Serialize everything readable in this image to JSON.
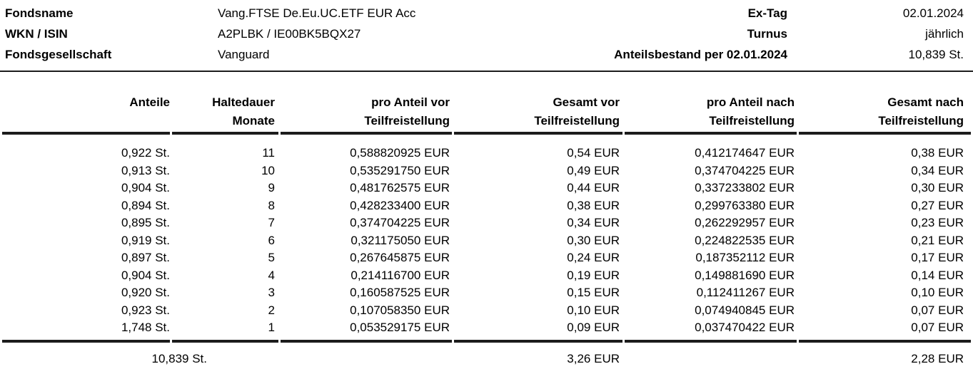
{
  "info": {
    "left": [
      {
        "label": "Fondsname",
        "value": "Vang.FTSE De.Eu.UC.ETF EUR Acc"
      },
      {
        "label": "WKN / ISIN",
        "value": "A2PLBK / IE00BK5BQX27"
      },
      {
        "label": "Fondsgesellschaft",
        "value": "Vanguard"
      }
    ],
    "right": [
      {
        "label": "Ex-Tag",
        "value": "02.01.2024"
      },
      {
        "label": "Turnus",
        "value": "jährlich"
      },
      {
        "label": "Anteilsbestand per 02.01.2024",
        "value": "10,839 St."
      }
    ]
  },
  "table": {
    "columns": [
      {
        "l1": "Anteile",
        "l2": ""
      },
      {
        "l1": "Haltedauer",
        "l2": "Monate"
      },
      {
        "l1": "pro Anteil vor",
        "l2": "Teilfreistellung"
      },
      {
        "l1": "Gesamt vor",
        "l2": "Teilfreistellung"
      },
      {
        "l1": "pro Anteil nach",
        "l2": "Teilfreistellung"
      },
      {
        "l1": "Gesamt nach",
        "l2": "Teilfreistellung"
      }
    ],
    "rows": [
      [
        "0,922 St.",
        "11",
        "0,588820925 EUR",
        "0,54 EUR",
        "0,412174647 EUR",
        "0,38 EUR"
      ],
      [
        "0,913 St.",
        "10",
        "0,535291750 EUR",
        "0,49 EUR",
        "0,374704225 EUR",
        "0,34 EUR"
      ],
      [
        "0,904 St.",
        "9",
        "0,481762575 EUR",
        "0,44 EUR",
        "0,337233802 EUR",
        "0,30 EUR"
      ],
      [
        "0,894 St.",
        "8",
        "0,428233400 EUR",
        "0,38 EUR",
        "0,299763380 EUR",
        "0,27 EUR"
      ],
      [
        "0,895 St.",
        "7",
        "0,374704225 EUR",
        "0,34 EUR",
        "0,262292957 EUR",
        "0,23 EUR"
      ],
      [
        "0,919 St.",
        "6",
        "0,321175050 EUR",
        "0,30 EUR",
        "0,224822535 EUR",
        "0,21 EUR"
      ],
      [
        "0,897 St.",
        "5",
        "0,267645875 EUR",
        "0,24 EUR",
        "0,187352112 EUR",
        "0,17 EUR"
      ],
      [
        "0,904 St.",
        "4",
        "0,214116700 EUR",
        "0,19 EUR",
        "0,149881690 EUR",
        "0,14 EUR"
      ],
      [
        "0,920 St.",
        "3",
        "0,160587525 EUR",
        "0,15 EUR",
        "0,112411267 EUR",
        "0,10 EUR"
      ],
      [
        "0,923 St.",
        "2",
        "0,107058350 EUR",
        "0,10 EUR",
        "0,074940845 EUR",
        "0,07 EUR"
      ],
      [
        "1,748 St.",
        "1",
        "0,053529175 EUR",
        "0,09 EUR",
        "0,037470422 EUR",
        "0,07 EUR"
      ]
    ],
    "totals": [
      "10,839 St.",
      "",
      "",
      "3,26 EUR",
      "",
      "2,28 EUR"
    ]
  },
  "colors": {
    "text": "#000000",
    "rule": "#1c1c1c",
    "background": "#ffffff"
  }
}
